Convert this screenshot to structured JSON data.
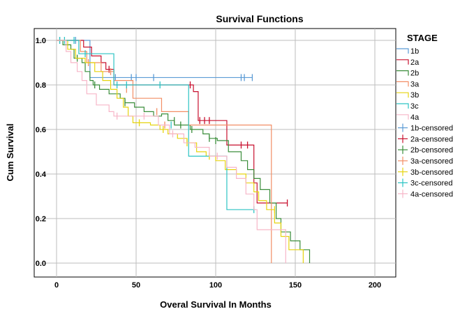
{
  "chart_data": {
    "type": "line",
    "title": "Survival Functions",
    "xlabel": "Overal Survival In Months",
    "ylabel": "Cum Survival",
    "xlim": [
      0,
      200
    ],
    "ylim": [
      0,
      1
    ],
    "x_ticks": [
      0,
      50,
      100,
      150,
      200
    ],
    "y_ticks": [
      "0.0",
      "0.2",
      "0.4",
      "0.6",
      "0.8",
      "1.0"
    ],
    "grid": true,
    "legend_title": "STAGE",
    "legend_placement": "right",
    "series": [
      {
        "name": "1b",
        "color": "#5b9bd5",
        "x": [
          0,
          21,
          123
        ],
        "y": [
          1.0,
          0.833,
          0.833
        ],
        "censor_x": [
          2,
          12,
          37,
          47,
          50,
          61,
          116,
          118,
          123
        ],
        "censor_y": [
          1.0,
          1.0,
          0.833,
          0.833,
          0.833,
          0.833,
          0.833,
          0.833,
          0.833
        ]
      },
      {
        "name": "2a",
        "color": "#c8102e",
        "x": [
          0,
          17,
          22,
          28,
          31,
          36,
          86,
          89,
          107,
          124,
          126,
          145
        ],
        "y": [
          1.0,
          0.97,
          0.93,
          0.9,
          0.87,
          0.8,
          0.77,
          0.64,
          0.53,
          0.36,
          0.27,
          0.27
        ],
        "censor_x": [
          33,
          84,
          90,
          93,
          96,
          116,
          120,
          145
        ],
        "censor_y": [
          0.87,
          0.8,
          0.64,
          0.64,
          0.64,
          0.53,
          0.53,
          0.27
        ],
        "end_drop": false
      },
      {
        "name": "2b",
        "color": "#3a8d3a",
        "x": [
          0,
          4,
          9,
          11,
          16,
          18,
          21,
          23,
          27,
          33,
          40,
          43,
          49,
          55,
          61,
          66,
          70,
          74,
          84,
          92,
          96,
          101,
          108,
          116,
          120,
          124,
          128,
          134,
          138,
          141,
          147,
          153,
          159
        ],
        "y": [
          1.0,
          0.98,
          0.96,
          0.92,
          0.9,
          0.86,
          0.82,
          0.8,
          0.78,
          0.76,
          0.74,
          0.72,
          0.7,
          0.68,
          0.66,
          0.67,
          0.64,
          0.62,
          0.6,
          0.58,
          0.56,
          0.55,
          0.5,
          0.46,
          0.42,
          0.38,
          0.33,
          0.27,
          0.2,
          0.14,
          0.1,
          0.06,
          0.0
        ],
        "censor_x": [
          13,
          24,
          43,
          74,
          78,
          85,
          96,
          100
        ],
        "censor_y": [
          0.92,
          0.8,
          0.72,
          0.64,
          0.62,
          0.6,
          0.56,
          0.55
        ]
      },
      {
        "name": "3a",
        "color": "#f28e65",
        "x": [
          0,
          15,
          19,
          28,
          36,
          48,
          66,
          83,
          97,
          106,
          135,
          135
        ],
        "y": [
          1.0,
          0.95,
          0.9,
          0.86,
          0.82,
          0.74,
          0.68,
          0.62,
          0.62,
          0.62,
          0.62,
          0.0
        ],
        "censor_x": [
          20,
          34,
          44,
          63,
          68
        ],
        "censor_y": [
          0.9,
          0.86,
          0.78,
          0.68,
          0.62
        ]
      },
      {
        "name": "3b",
        "color": "#e6d40f",
        "x": [
          0,
          7,
          12,
          18,
          24,
          29,
          34,
          38,
          42,
          45,
          48,
          53,
          59,
          65,
          70,
          76,
          82,
          88,
          94,
          100,
          106,
          113,
          119,
          124,
          127,
          132,
          137,
          141,
          146,
          155
        ],
        "y": [
          1.0,
          0.96,
          0.92,
          0.9,
          0.86,
          0.82,
          0.78,
          0.74,
          0.7,
          0.66,
          0.63,
          0.63,
          0.62,
          0.6,
          0.58,
          0.56,
          0.54,
          0.5,
          0.48,
          0.46,
          0.42,
          0.4,
          0.36,
          0.32,
          0.28,
          0.24,
          0.18,
          0.12,
          0.06,
          0.0
        ],
        "censor_x": [
          52,
          67,
          82,
          96,
          137
        ],
        "censor_y": [
          0.63,
          0.6,
          0.54,
          0.48,
          0.24
        ]
      },
      {
        "name": "3c",
        "color": "#2cc4c4",
        "x": [
          0,
          14,
          36,
          66,
          83,
          95,
          107,
          125
        ],
        "y": [
          1.0,
          0.94,
          0.8,
          0.8,
          0.48,
          0.48,
          0.24,
          0.24
        ],
        "censor_x": [
          2,
          5,
          11,
          18,
          38,
          44,
          65,
          72,
          124
        ],
        "censor_y": [
          1.0,
          1.0,
          1.0,
          0.94,
          0.8,
          0.8,
          0.8,
          0.62,
          0.24
        ]
      },
      {
        "name": "4a",
        "color": "#f7b6c8",
        "x": [
          0,
          6,
          9,
          13,
          16,
          19,
          25,
          33,
          36,
          39,
          45,
          52,
          64,
          71,
          80,
          87,
          96,
          107,
          113,
          119,
          124,
          126,
          135,
          144
        ],
        "y": [
          1.0,
          0.95,
          0.9,
          0.86,
          0.82,
          0.76,
          0.71,
          0.68,
          0.66,
          0.66,
          0.66,
          0.66,
          0.62,
          0.58,
          0.54,
          0.52,
          0.48,
          0.43,
          0.38,
          0.31,
          0.24,
          0.15,
          0.15,
          0.0
        ],
        "censor_x": [
          38,
          55,
          73,
          101
        ],
        "censor_y": [
          0.66,
          0.66,
          0.58,
          0.48
        ]
      }
    ],
    "legend_entries": [
      "1b",
      "2a",
      "2b",
      "3a",
      "3b",
      "3c",
      "4a",
      "1b-censored",
      "2a-censored",
      "2b-censored",
      "3a-censored",
      "3b-censored",
      "3c-censored",
      "4a-censored"
    ]
  }
}
